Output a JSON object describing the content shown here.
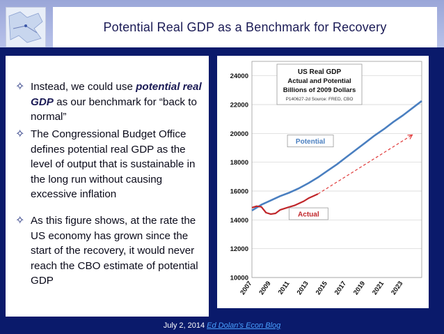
{
  "header": {
    "title": "Potential Real GDP as a Benchmark for Recovery"
  },
  "bullets": [
    {
      "pre": "Instead, we could use ",
      "emph": "potential real GDP",
      "post": " as our benchmark for “back to normal”"
    },
    {
      "pre": "The Congressional Budget Office defines potential real GDP as the level of output that is sustainable in the long run without causing excessive inflation",
      "emph": "",
      "post": ""
    },
    {
      "pre": "As this figure shows, at the rate the US economy has grown since the start of the recovery, it would never reach the CBO estimate of potential GDP",
      "emph": "",
      "post": ""
    }
  ],
  "footer": {
    "date": "July 2, 2014",
    "link_text": "Ed Dolan's Econ Blog"
  },
  "colors": {
    "potential": "#4a7fc0",
    "actual": "#c0262a",
    "trend": "#e03a3a"
  },
  "chart_data": {
    "type": "line",
    "title": "US Real GDP",
    "subtitle": "Actual and Potential",
    "subtitle2": "Billions of 2009  Dollars",
    "source": "P140627-2d Source: FRED, CBO",
    "x_ticks": [
      "2007",
      "2009",
      "2011",
      "2013",
      "2015",
      "2017",
      "2019",
      "2021",
      "2023"
    ],
    "y_ticks": [
      10000,
      12000,
      14000,
      16000,
      18000,
      20000,
      22000,
      24000
    ],
    "ylim": [
      10000,
      25000
    ],
    "xlim": [
      2007,
      2025
    ],
    "grid": true,
    "series": [
      {
        "name": "Potential",
        "label_box": true,
        "points": [
          [
            2007,
            14650
          ],
          [
            2008,
            15050
          ],
          [
            2009,
            15350
          ],
          [
            2010,
            15650
          ],
          [
            2011,
            15900
          ],
          [
            2012,
            16200
          ],
          [
            2013,
            16550
          ],
          [
            2014,
            16950
          ],
          [
            2015,
            17400
          ],
          [
            2016,
            17850
          ],
          [
            2017,
            18350
          ],
          [
            2018,
            18850
          ],
          [
            2019,
            19350
          ],
          [
            2020,
            19850
          ],
          [
            2021,
            20300
          ],
          [
            2022,
            20800
          ],
          [
            2023,
            21250
          ],
          [
            2024,
            21750
          ],
          [
            2025,
            22250
          ]
        ]
      },
      {
        "name": "Actual",
        "label_box": true,
        "points": [
          [
            2007,
            14850
          ],
          [
            2007.5,
            14950
          ],
          [
            2008,
            14900
          ],
          [
            2008.5,
            14500
          ],
          [
            2009,
            14400
          ],
          [
            2009.5,
            14450
          ],
          [
            2010,
            14700
          ],
          [
            2010.5,
            14800
          ],
          [
            2011,
            14900
          ],
          [
            2011.5,
            15000
          ],
          [
            2012,
            15150
          ],
          [
            2012.5,
            15300
          ],
          [
            2013,
            15500
          ],
          [
            2013.5,
            15650
          ],
          [
            2014,
            15800
          ]
        ]
      }
    ],
    "trend": {
      "from": [
        2014,
        15800
      ],
      "to": [
        2024,
        19900
      ]
    }
  }
}
